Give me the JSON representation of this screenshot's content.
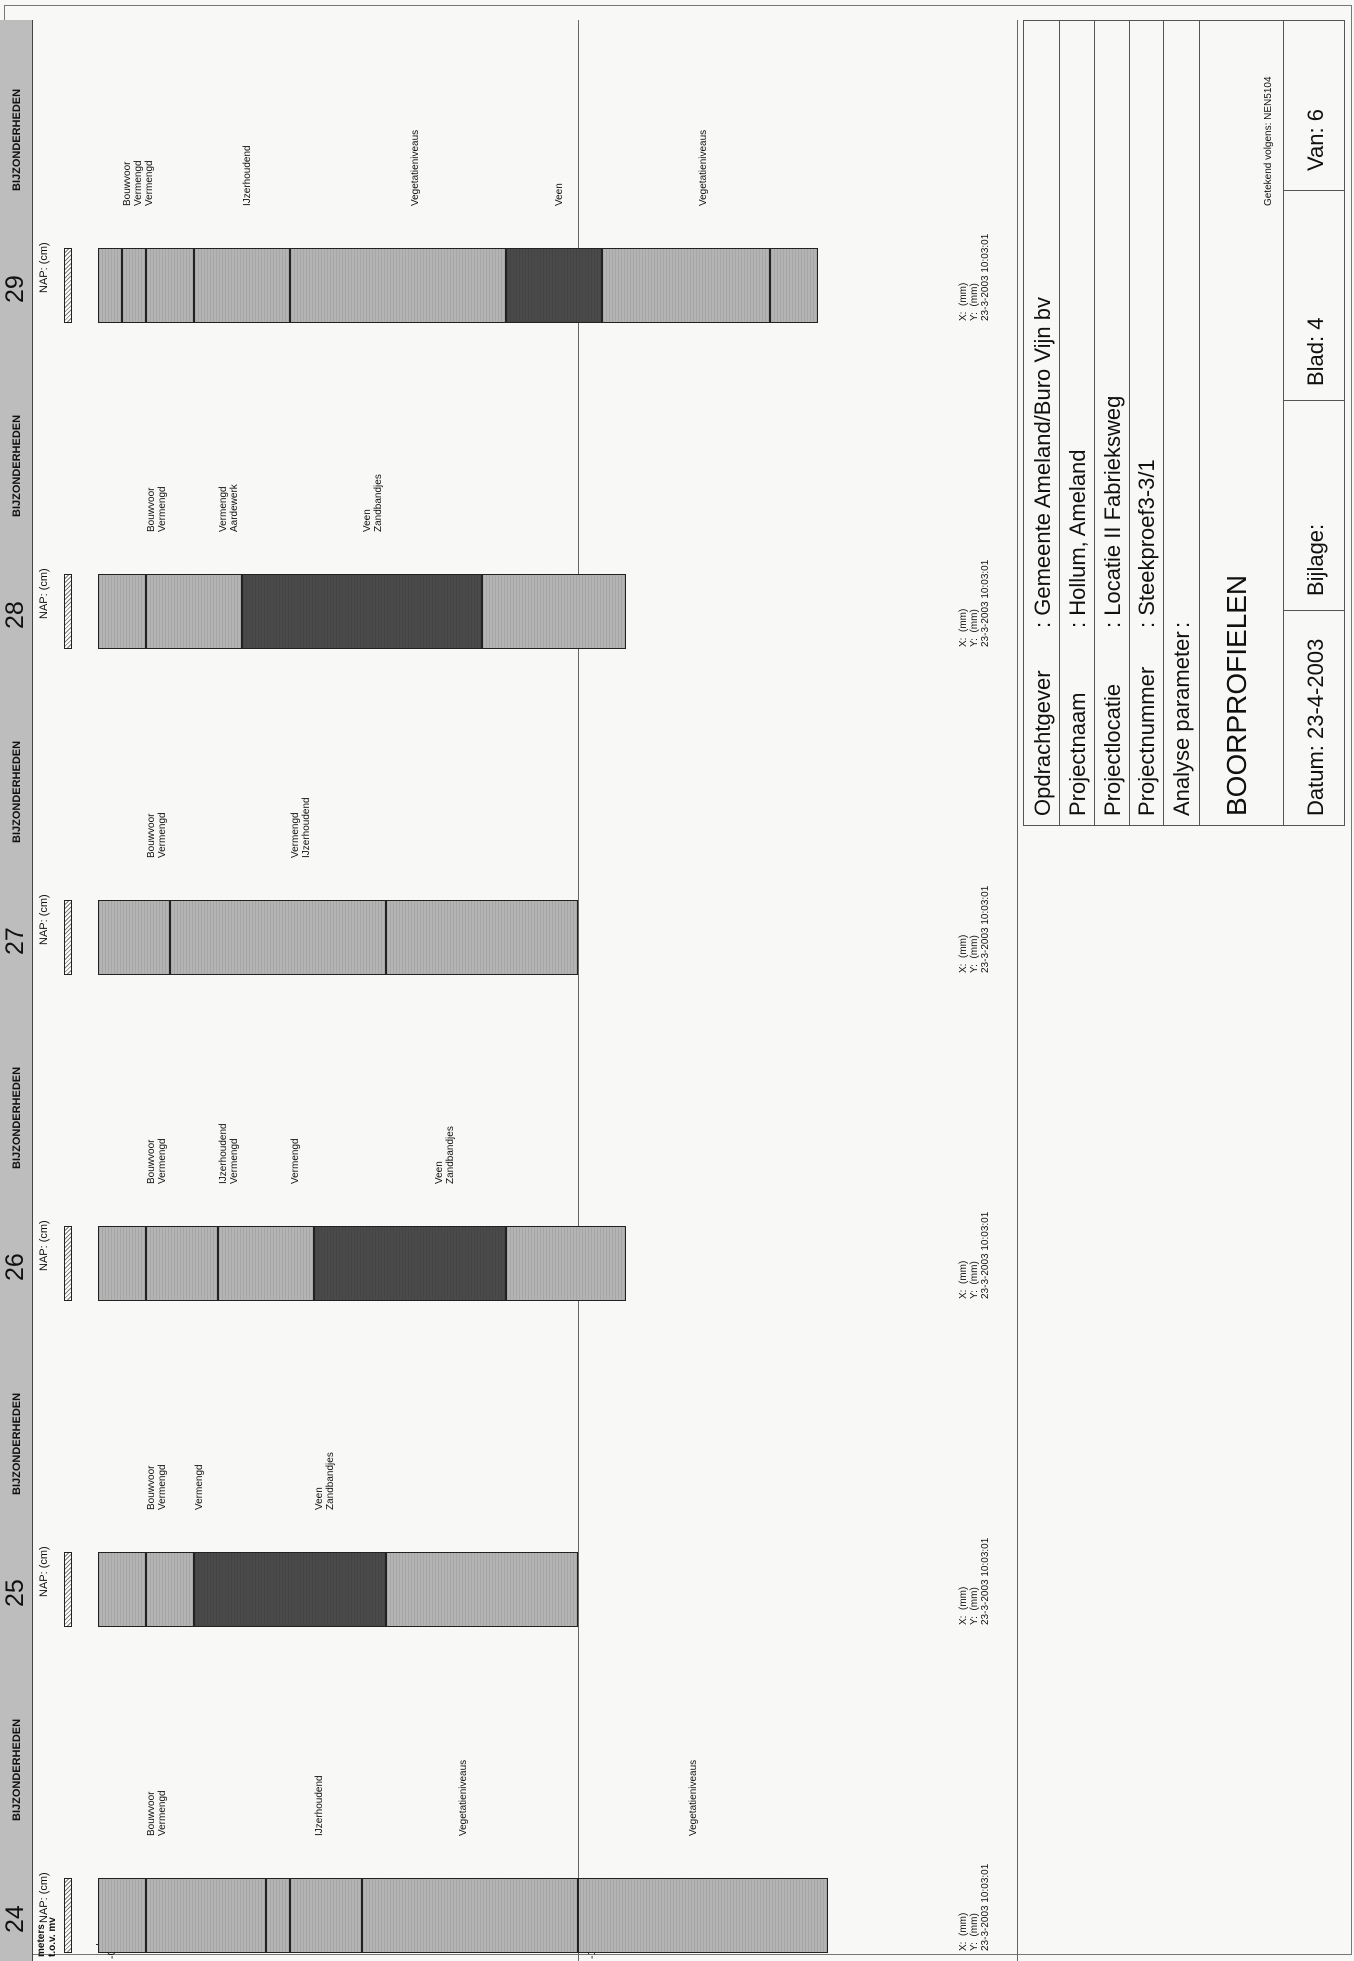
{
  "axis": {
    "label": "meters\nt.o.v. mv",
    "ticks": [
      "-0",
      "-1"
    ]
  },
  "column_header": {
    "nap_label": "NAP: (cm)",
    "remarks_heading": "BIJZONDERHEDEN"
  },
  "borings": [
    {
      "number": "24",
      "coords": "X:  (mm)\nY:  (mm)\n23-3-2003 10:03:01",
      "remarks": [
        {
          "text": "Bouwvoor\nVermengd",
          "depth_m": 0.1
        },
        {
          "text": "IJzerhoudend",
          "depth_m": 0.45
        },
        {
          "text": "Vegetatieniveaus",
          "depth_m": 0.75
        },
        {
          "text": "Vegetatieniveaus",
          "depth_m": 1.23
        }
      ],
      "layers": [
        {
          "top_m": 0.0,
          "bottom_m": 0.1,
          "soil": "sand"
        },
        {
          "top_m": 0.1,
          "bottom_m": 0.35,
          "soil": "sand"
        },
        {
          "top_m": 0.35,
          "bottom_m": 0.4,
          "soil": "sand"
        },
        {
          "top_m": 0.4,
          "bottom_m": 0.55,
          "soil": "sand"
        },
        {
          "top_m": 0.55,
          "bottom_m": 1.0,
          "soil": "sand"
        },
        {
          "top_m": 1.0,
          "bottom_m": 1.52,
          "soil": "sand"
        }
      ]
    },
    {
      "number": "25",
      "coords": "X:  (mm)\nY:  (mm)\n23-3-2003 10:03:01",
      "remarks": [
        {
          "text": "Bouwvoor\nVermengd",
          "depth_m": 0.1
        },
        {
          "text": "Vermengd",
          "depth_m": 0.2
        },
        {
          "text": "Veen\nZandbandjes",
          "depth_m": 0.45
        }
      ],
      "layers": [
        {
          "top_m": 0.0,
          "bottom_m": 0.1,
          "soil": "sand"
        },
        {
          "top_m": 0.1,
          "bottom_m": 0.2,
          "soil": "sand"
        },
        {
          "top_m": 0.2,
          "bottom_m": 0.6,
          "soil": "peat"
        },
        {
          "top_m": 0.6,
          "bottom_m": 1.0,
          "soil": "sand"
        }
      ]
    },
    {
      "number": "26",
      "coords": "X:  (mm)\nY:  (mm)\n23-3-2003 10:03:01",
      "remarks": [
        {
          "text": "Bouwvoor\nVermengd",
          "depth_m": 0.1
        },
        {
          "text": "IJzerhoudend\nVermengd",
          "depth_m": 0.25
        },
        {
          "text": "Vermengd",
          "depth_m": 0.4
        },
        {
          "text": "Veen\nZandbandjes",
          "depth_m": 0.7
        }
      ],
      "layers": [
        {
          "top_m": 0.0,
          "bottom_m": 0.1,
          "soil": "sand"
        },
        {
          "top_m": 0.1,
          "bottom_m": 0.25,
          "soil": "sand"
        },
        {
          "top_m": 0.25,
          "bottom_m": 0.45,
          "soil": "sand"
        },
        {
          "top_m": 0.45,
          "bottom_m": 0.85,
          "soil": "peat"
        },
        {
          "top_m": 0.85,
          "bottom_m": 1.1,
          "soil": "sand"
        }
      ]
    },
    {
      "number": "27",
      "coords": "X:  (mm)\nY:  (mm)\n23-3-2003 10:03:01",
      "remarks": [
        {
          "text": "Bouwvoor\nVermengd",
          "depth_m": 0.1
        },
        {
          "text": "Vermengd\nIJzerhoudend",
          "depth_m": 0.4
        }
      ],
      "layers": [
        {
          "top_m": 0.0,
          "bottom_m": 0.15,
          "soil": "sand"
        },
        {
          "top_m": 0.15,
          "bottom_m": 0.6,
          "soil": "sand"
        },
        {
          "top_m": 0.6,
          "bottom_m": 1.0,
          "soil": "sand"
        }
      ]
    },
    {
      "number": "28",
      "coords": "X:  (mm)\nY:  (mm)\n23-3-2003 10:03:01",
      "remarks": [
        {
          "text": "Bouwvoor\nVermengd",
          "depth_m": 0.1
        },
        {
          "text": "Vermengd\nAardewerk",
          "depth_m": 0.25
        },
        {
          "text": "Veen\nZandbandjes",
          "depth_m": 0.55
        }
      ],
      "layers": [
        {
          "top_m": 0.0,
          "bottom_m": 0.1,
          "soil": "sand"
        },
        {
          "top_m": 0.1,
          "bottom_m": 0.3,
          "soil": "sand"
        },
        {
          "top_m": 0.3,
          "bottom_m": 0.8,
          "soil": "peat"
        },
        {
          "top_m": 0.8,
          "bottom_m": 1.1,
          "soil": "sand"
        }
      ]
    },
    {
      "number": "29",
      "coords": "X:  (mm)\nY:  (mm)\n23-3-2003 10:03:01",
      "remarks": [
        {
          "text": "Bouwvoor\nVermengd\nVermengd",
          "depth_m": 0.05
        },
        {
          "text": "IJzerhoudend",
          "depth_m": 0.3
        },
        {
          "text": "Vegetatieniveaus",
          "depth_m": 0.65
        },
        {
          "text": "Veen",
          "depth_m": 0.95
        },
        {
          "text": "Vegetatieniveaus",
          "depth_m": 1.25
        }
      ],
      "layers": [
        {
          "top_m": 0.0,
          "bottom_m": 0.05,
          "soil": "sand"
        },
        {
          "top_m": 0.05,
          "bottom_m": 0.1,
          "soil": "sand"
        },
        {
          "top_m": 0.1,
          "bottom_m": 0.2,
          "soil": "sand"
        },
        {
          "top_m": 0.2,
          "bottom_m": 0.4,
          "soil": "sand"
        },
        {
          "top_m": 0.4,
          "bottom_m": 0.85,
          "soil": "sand"
        },
        {
          "top_m": 0.85,
          "bottom_m": 1.05,
          "soil": "peat"
        },
        {
          "top_m": 1.05,
          "bottom_m": 1.4,
          "soil": "sand"
        },
        {
          "top_m": 1.4,
          "bottom_m": 1.5,
          "soil": "sand"
        }
      ]
    }
  ],
  "title_block": {
    "opdrachtgever_label": "Opdrachtgever",
    "opdrachtgever_value": ": Gemeente Ameland/Buro Vijn bv",
    "projectnaam_label": "Projectnaam",
    "projectnaam_value": ": Hollum, Ameland",
    "projectlocatie_label": "Projectlocatie",
    "projectlocatie_value": ": Locatie II Fabrieksweg",
    "projectnummer_label": "Projectnummer",
    "projectnummer_value": ": Steekproef3-3/1",
    "analyse_label": "Analyse parameter",
    "analyse_value": ":",
    "title": "BOORPROFIELEN",
    "getekend": "Getekend volgens: NEN5104",
    "datum": "Datum: 23-4-2003",
    "bijlage": "Bijlage:",
    "blad": "Blad: 4",
    "van": "Van: 6"
  },
  "colors": {
    "sand": "#b4b4b4",
    "peat": "#4a4a4a",
    "line": "#222222"
  }
}
